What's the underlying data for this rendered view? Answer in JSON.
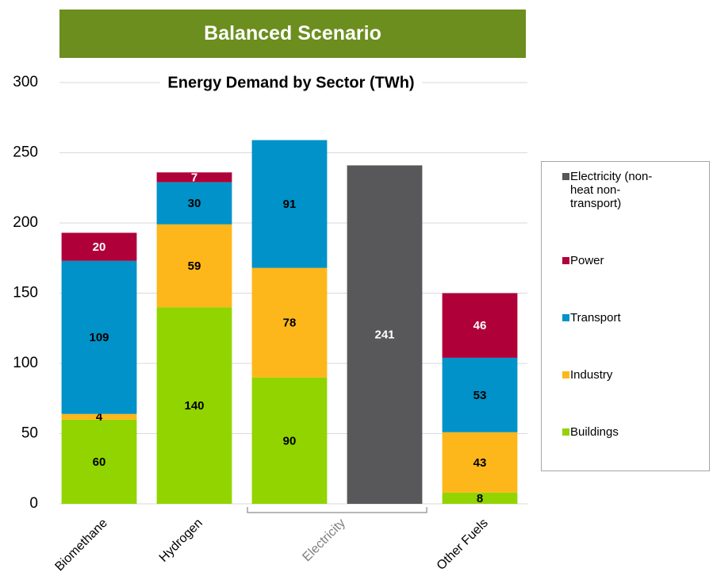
{
  "header": {
    "title": "Balanced Scenario"
  },
  "chart_data": {
    "type": "stacked_bar",
    "title": "Energy Demand by Sector (TWh)",
    "categories": [
      "Biomethane",
      "Hydrogen",
      "Electricity",
      null,
      "Other Fuels"
    ],
    "series": [
      {
        "name": "Buildings",
        "color": "#92d400",
        "label_color": "#000000",
        "values": [
          60,
          140,
          90,
          null,
          8
        ]
      },
      {
        "name": "Industry",
        "color": "#fdb71a",
        "label_color": "#000000",
        "values": [
          4,
          59,
          78,
          null,
          43
        ]
      },
      {
        "name": "Transport",
        "color": "#0092c8",
        "label_color": "#000000",
        "values": [
          109,
          30,
          91,
          null,
          53
        ]
      },
      {
        "name": "Power",
        "color": "#b0003a",
        "label_color": "#ffffff",
        "values": [
          20,
          7,
          null,
          null,
          46
        ]
      },
      {
        "name": "Electricity (non-heat non-transport)",
        "color": "#58585a",
        "label_color": "#ffffff",
        "values": [
          null,
          null,
          null,
          241,
          null
        ]
      }
    ],
    "ylim": [
      0,
      300
    ],
    "yticks": [
      0,
      50,
      100,
      150,
      200,
      250,
      300
    ],
    "grid": true,
    "legend": "right"
  }
}
